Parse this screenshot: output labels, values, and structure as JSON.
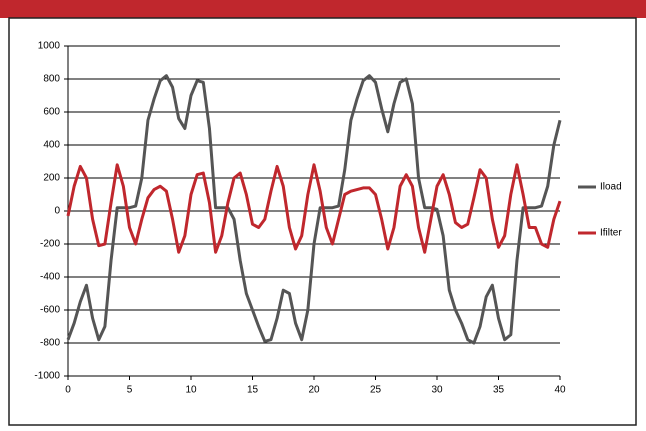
{
  "chart_data": {
    "type": "line",
    "x": [
      0,
      0.5,
      1,
      1.5,
      2,
      2.5,
      3,
      3.5,
      4,
      4.5,
      5,
      5.5,
      6,
      6.5,
      7,
      7.5,
      8,
      8.5,
      9,
      9.5,
      10,
      10.5,
      11,
      11.5,
      12,
      12.5,
      13,
      13.5,
      14,
      14.5,
      15,
      15.5,
      16,
      16.5,
      17,
      17.5,
      18,
      18.5,
      19,
      19.5,
      20,
      20.5,
      21,
      21.5,
      22,
      22.5,
      23,
      23.5,
      24,
      24.5,
      25,
      25.5,
      26,
      26.5,
      27,
      27.5,
      28,
      28.5,
      29,
      29.5,
      30,
      30.5,
      31,
      31.5,
      32,
      32.5,
      33,
      33.5,
      34,
      34.5,
      35,
      35.5,
      36,
      36.5,
      37,
      37.5,
      38,
      38.5,
      39,
      39.5,
      40
    ],
    "series": [
      {
        "name": "Iload",
        "color": "#555555",
        "values": [
          -780,
          -680,
          -550,
          -450,
          -650,
          -780,
          -700,
          -300,
          20,
          20,
          20,
          30,
          200,
          550,
          680,
          790,
          820,
          750,
          560,
          500,
          700,
          790,
          780,
          500,
          20,
          20,
          20,
          -50,
          -300,
          -500,
          -600,
          -700,
          -790,
          -780,
          -650,
          -480,
          -500,
          -680,
          -780,
          -600,
          -200,
          20,
          20,
          20,
          30,
          250,
          550,
          680,
          790,
          820,
          780,
          620,
          480,
          650,
          780,
          800,
          650,
          200,
          20,
          20,
          10,
          -150,
          -480,
          -600,
          -680,
          -780,
          -800,
          -700,
          -520,
          -450,
          -650,
          -780,
          -750,
          -300,
          20,
          20,
          20,
          30,
          150,
          400,
          550
        ]
      },
      {
        "name": "Ifilter",
        "color": "#c0272d",
        "values": [
          -30,
          150,
          270,
          200,
          -50,
          -210,
          -200,
          50,
          280,
          150,
          -100,
          -200,
          -50,
          80,
          130,
          150,
          120,
          -50,
          -250,
          -150,
          100,
          220,
          230,
          50,
          -250,
          -150,
          50,
          200,
          230,
          100,
          -80,
          -100,
          -50,
          120,
          270,
          150,
          -100,
          -230,
          -150,
          100,
          280,
          120,
          -100,
          -200,
          -50,
          100,
          120,
          130,
          140,
          140,
          100,
          -50,
          -230,
          -100,
          150,
          220,
          150,
          -100,
          -250,
          -50,
          150,
          220,
          100,
          -70,
          -100,
          -80,
          80,
          250,
          200,
          -50,
          -220,
          -150,
          100,
          280,
          100,
          -100,
          -100,
          -200,
          -220,
          -50,
          60
        ]
      }
    ],
    "xlim": [
      0,
      40
    ],
    "xticks": [
      0,
      5,
      10,
      15,
      20,
      25,
      30,
      35,
      40
    ],
    "ylim": [
      -1000,
      1000
    ],
    "yticks": [
      -1000,
      -800,
      -600,
      -400,
      -200,
      0,
      200,
      400,
      600,
      800,
      1000
    ],
    "grid": true,
    "legend": "right"
  }
}
